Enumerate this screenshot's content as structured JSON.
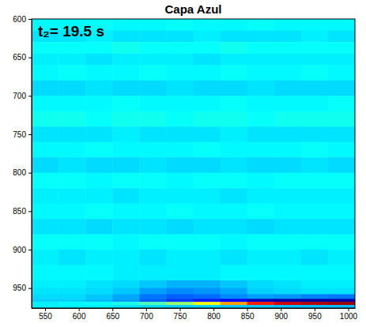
{
  "chart_data": {
    "type": "heatmap",
    "title": "Capa Azul",
    "annotation": "t₂= 19.5 s",
    "color": "jet",
    "xlim": [
      530,
      1010
    ],
    "xticks": [
      550,
      600,
      650,
      700,
      750,
      800,
      850,
      900,
      950,
      1000
    ],
    "ylim": [
      600,
      976
    ],
    "yticks": [
      600,
      650,
      700,
      750,
      800,
      850,
      900,
      950
    ],
    "color_range": [
      0,
      1
    ],
    "x_edges": [
      530,
      570,
      610,
      650,
      690,
      730,
      770,
      810,
      850,
      890,
      930,
      970,
      1010
    ],
    "y_edges": [
      600,
      615,
      630,
      645,
      660,
      680,
      700,
      720,
      740,
      760,
      780,
      800,
      820,
      840,
      860,
      880,
      900,
      920,
      940,
      950,
      958,
      964,
      968,
      972,
      976
    ],
    "cells": [
      [
        0.37,
        0.37,
        0.38,
        0.37,
        0.37,
        0.38,
        0.37,
        0.37,
        0.38,
        0.37,
        0.37,
        0.37
      ],
      [
        0.35,
        0.35,
        0.36,
        0.35,
        0.35,
        0.35,
        0.36,
        0.35,
        0.35,
        0.35,
        0.36,
        0.35
      ],
      [
        0.38,
        0.38,
        0.38,
        0.39,
        0.38,
        0.38,
        0.38,
        0.39,
        0.38,
        0.38,
        0.38,
        0.38
      ],
      [
        0.36,
        0.36,
        0.35,
        0.36,
        0.36,
        0.36,
        0.35,
        0.36,
        0.36,
        0.36,
        0.36,
        0.36
      ],
      [
        0.37,
        0.38,
        0.37,
        0.37,
        0.38,
        0.37,
        0.37,
        0.38,
        0.37,
        0.37,
        0.38,
        0.37
      ],
      [
        0.34,
        0.34,
        0.35,
        0.34,
        0.34,
        0.35,
        0.34,
        0.34,
        0.35,
        0.34,
        0.34,
        0.34
      ],
      [
        0.37,
        0.37,
        0.37,
        0.38,
        0.37,
        0.37,
        0.37,
        0.38,
        0.37,
        0.37,
        0.37,
        0.38
      ],
      [
        0.39,
        0.39,
        0.38,
        0.39,
        0.39,
        0.38,
        0.39,
        0.39,
        0.38,
        0.39,
        0.39,
        0.39
      ],
      [
        0.35,
        0.35,
        0.35,
        0.36,
        0.35,
        0.35,
        0.35,
        0.36,
        0.35,
        0.35,
        0.35,
        0.35
      ],
      [
        0.37,
        0.37,
        0.38,
        0.37,
        0.37,
        0.37,
        0.38,
        0.37,
        0.37,
        0.37,
        0.38,
        0.37
      ],
      [
        0.34,
        0.35,
        0.34,
        0.34,
        0.35,
        0.34,
        0.34,
        0.35,
        0.34,
        0.34,
        0.35,
        0.34
      ],
      [
        0.38,
        0.38,
        0.37,
        0.38,
        0.38,
        0.37,
        0.38,
        0.38,
        0.37,
        0.38,
        0.38,
        0.38
      ],
      [
        0.36,
        0.36,
        0.36,
        0.35,
        0.36,
        0.36,
        0.36,
        0.35,
        0.36,
        0.36,
        0.36,
        0.36
      ],
      [
        0.37,
        0.37,
        0.38,
        0.37,
        0.37,
        0.38,
        0.37,
        0.37,
        0.38,
        0.37,
        0.37,
        0.37
      ],
      [
        0.35,
        0.35,
        0.34,
        0.35,
        0.35,
        0.34,
        0.35,
        0.35,
        0.34,
        0.35,
        0.35,
        0.35
      ],
      [
        0.38,
        0.38,
        0.38,
        0.37,
        0.38,
        0.38,
        0.38,
        0.37,
        0.38,
        0.38,
        0.38,
        0.38
      ],
      [
        0.36,
        0.35,
        0.36,
        0.36,
        0.35,
        0.36,
        0.36,
        0.35,
        0.36,
        0.36,
        0.35,
        0.36
      ],
      [
        0.37,
        0.37,
        0.37,
        0.36,
        0.36,
        0.36,
        0.36,
        0.37,
        0.37,
        0.37,
        0.37,
        0.37
      ],
      [
        0.36,
        0.36,
        0.35,
        0.34,
        0.32,
        0.3,
        0.3,
        0.32,
        0.34,
        0.35,
        0.36,
        0.36
      ],
      [
        0.35,
        0.35,
        0.34,
        0.32,
        0.28,
        0.26,
        0.27,
        0.29,
        0.33,
        0.34,
        0.35,
        0.35
      ],
      [
        0.34,
        0.34,
        0.32,
        0.29,
        0.24,
        0.22,
        0.23,
        0.26,
        0.28,
        0.27,
        0.25,
        0.24
      ],
      [
        0.33,
        0.33,
        0.31,
        0.28,
        0.22,
        0.18,
        0.15,
        0.12,
        0.06,
        0.04,
        0.03,
        0.03
      ],
      [
        0.36,
        0.37,
        0.38,
        0.4,
        0.45,
        0.52,
        0.62,
        0.72,
        0.85,
        0.92,
        0.95,
        0.97
      ],
      [
        0.36,
        0.36,
        0.36,
        0.35,
        0.34,
        0.33,
        0.33,
        0.32,
        0.32,
        0.31,
        0.31,
        0.31
      ]
    ]
  }
}
